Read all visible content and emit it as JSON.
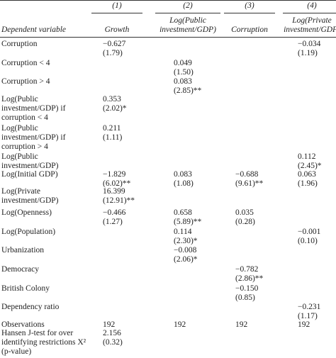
{
  "table": {
    "header_numbers": [
      "(1)",
      "(2)",
      "(3)",
      "(4)"
    ],
    "columns": [
      "Dependent variable",
      "Growth",
      "Log(Public investment/GDP)",
      "Corruption",
      "Log(Private investment/GDP)"
    ],
    "rows": [
      {
        "label": "Corruption",
        "cells": [
          [
            "−0.627",
            "(1.79)"
          ],
          null,
          null,
          [
            "−0.034",
            "(1.19)"
          ]
        ]
      },
      {
        "label": "Corruption < 4",
        "cells": [
          null,
          [
            "0.049",
            "(1.50)"
          ],
          null,
          null
        ]
      },
      {
        "label": "Corruption > 4",
        "cells": [
          null,
          [
            "0.083",
            "(2.85)**"
          ],
          null,
          null
        ]
      },
      {
        "label": "Log(Public investment/GDP) if corruption < 4",
        "cells": [
          [
            "0.353",
            "(2.02)*"
          ],
          null,
          null,
          null
        ]
      },
      {
        "label": "Log(Public investment/GDP) if corruption > 4",
        "cells": [
          [
            "0.211",
            "(1.11)"
          ],
          null,
          null,
          null
        ]
      },
      {
        "label": "Log(Public investment/GDP)",
        "cells": [
          null,
          null,
          null,
          [
            "0.112",
            "(2.45)*"
          ]
        ]
      },
      {
        "label": "Log(Initial GDP)",
        "cells": [
          [
            "−1.829",
            "(6.02)**"
          ],
          [
            "0.083",
            "(1.08)"
          ],
          [
            "−0.688",
            "(9.61)**"
          ],
          [
            "0.063",
            "(1.96)"
          ]
        ]
      },
      {
        "label": "Log(Private investment/GDP)",
        "cells": [
          [
            "16.399",
            "(12.91)**"
          ],
          null,
          null,
          null
        ]
      },
      {
        "label": "Log(Openness)",
        "cells": [
          [
            "−0.466",
            "(1.27)"
          ],
          [
            "0.658",
            "(5.89)**"
          ],
          [
            "0.035",
            "(0.28)"
          ],
          null
        ]
      },
      {
        "label": "Log(Population)",
        "cells": [
          null,
          [
            "0.114",
            "(2.30)*"
          ],
          null,
          [
            "−0.001",
            "(0.10)"
          ]
        ]
      },
      {
        "label": "Urbanization",
        "cells": [
          null,
          [
            "−0.008",
            "(2.06)*"
          ],
          null,
          null
        ]
      },
      {
        "label": "Democracy",
        "cells": [
          null,
          null,
          [
            "−0.782",
            "(2.86)**"
          ],
          null
        ]
      },
      {
        "label": "British Colony",
        "cells": [
          null,
          null,
          [
            "−0.150",
            "(0.85)"
          ],
          null
        ]
      },
      {
        "label": "Dependency ratio",
        "cells": [
          null,
          null,
          null,
          [
            "−0.231",
            "(1.17)"
          ]
        ]
      },
      {
        "label": "Observations",
        "cells": [
          [
            "192"
          ],
          [
            "192"
          ],
          [
            "192"
          ],
          [
            "192"
          ]
        ]
      },
      {
        "label": "Hansen J-test for over identifying restrictions X² (p-value)",
        "cells": [
          [
            "2.156",
            "(0.32)"
          ],
          null,
          null,
          null
        ]
      }
    ]
  }
}
